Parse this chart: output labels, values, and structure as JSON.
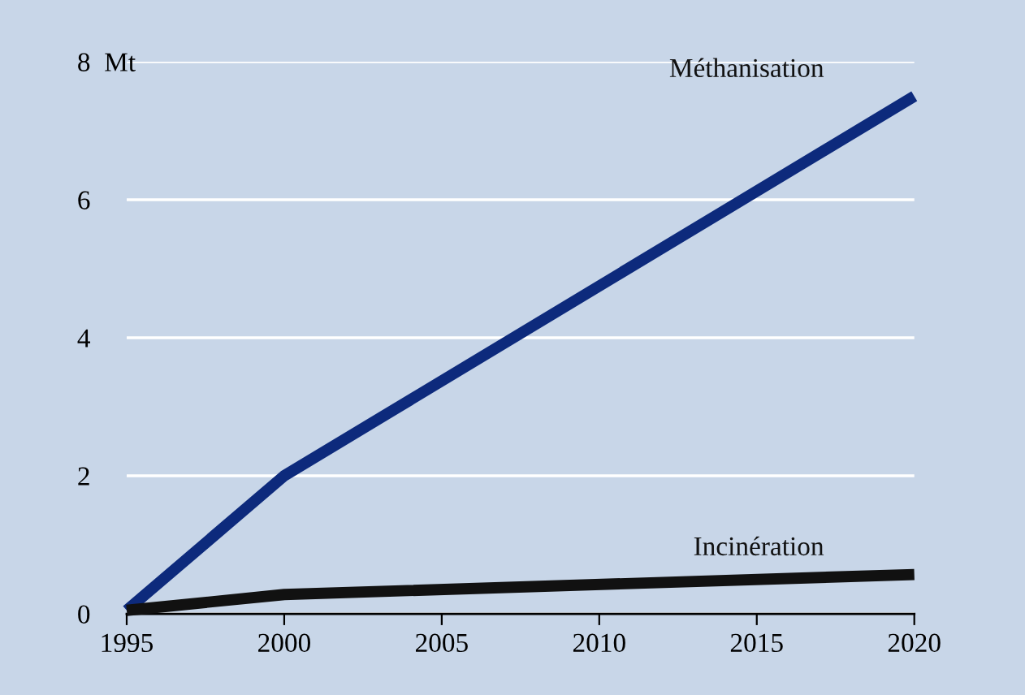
{
  "chart_data": {
    "type": "line",
    "x": [
      1995,
      2000,
      2020
    ],
    "series": [
      {
        "name": "Méthanisation",
        "color": "#0d2a7c",
        "values": [
          0.05,
          2.0,
          7.5
        ]
      },
      {
        "name": "Incinération",
        "color": "#111111",
        "values": [
          0.05,
          0.28,
          0.57
        ]
      }
    ],
    "xlim": [
      1995,
      2020
    ],
    "xticks": [
      1995,
      2000,
      2005,
      2010,
      2015,
      2020
    ],
    "ylim": [
      0,
      8
    ],
    "yticks": [
      0,
      2,
      4,
      6,
      {
        "value": 8,
        "label": "8  Mt"
      }
    ],
    "grid": "y",
    "line_style": "solid",
    "marker": "none",
    "legend": false
  }
}
